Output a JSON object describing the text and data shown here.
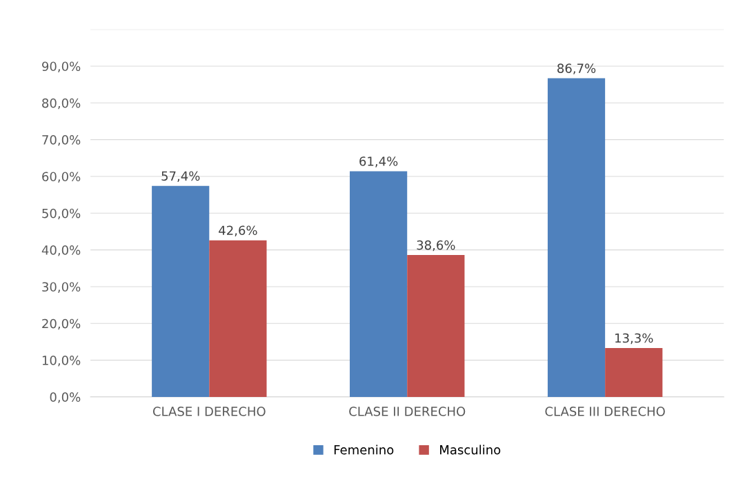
{
  "chart_data": {
    "type": "bar",
    "categories": [
      "CLASE I DERECHO",
      "CLASE II DERECHO",
      "CLASE III DERECHO"
    ],
    "series": [
      {
        "name": "Femenino",
        "color": "#4f81bd",
        "values": [
          57.4,
          61.4,
          86.7
        ],
        "value_labels": [
          "57,4%",
          "61,4%",
          "86,7%"
        ]
      },
      {
        "name": "Masculino",
        "color": "#c0504d",
        "values": [
          42.6,
          38.6,
          13.3
        ],
        "value_labels": [
          "42,6%",
          "38,6%",
          "13,3%"
        ]
      }
    ],
    "ylim": [
      0,
      100
    ],
    "yticks": [
      {
        "value": 0,
        "label": "0,0%"
      },
      {
        "value": 10,
        "label": "10,0%"
      },
      {
        "value": 20,
        "label": "20,0%"
      },
      {
        "value": 30,
        "label": "30,0%"
      },
      {
        "value": 40,
        "label": "40,0%"
      },
      {
        "value": 50,
        "label": "50,0%"
      },
      {
        "value": 60,
        "label": "60,0%"
      },
      {
        "value": 70,
        "label": "70,0%"
      },
      {
        "value": 80,
        "label": "80,0%"
      },
      {
        "value": 90,
        "label": "90,0%"
      },
      {
        "value": 100,
        "label": null
      }
    ],
    "grid": "y",
    "legend": "bottom"
  }
}
